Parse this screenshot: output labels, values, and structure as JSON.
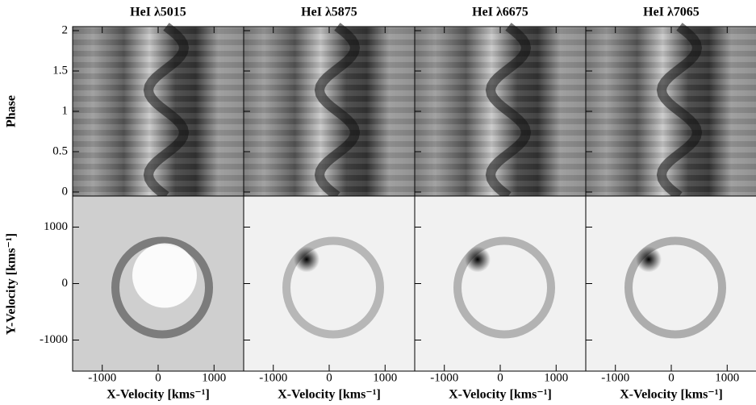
{
  "chart_data": {
    "type": "image-grid",
    "titles": [
      "HeI λ5015",
      "HeI λ5875",
      "HeI λ6675",
      "HeI λ7065"
    ],
    "trailed": {
      "ylabel": "Phase",
      "ylim": [
        -0.05,
        2.05
      ],
      "yticks": [
        0,
        0.5,
        1,
        1.5,
        2
      ]
    },
    "tomogram": {
      "xlabel": "X-Velocity [kms⁻¹]",
      "ylabel": "Y-Velocity [kms⁻¹]",
      "xlim": [
        -1530,
        1530
      ],
      "ylim": [
        -1550,
        1550
      ],
      "xticks": [
        -1000,
        0,
        1000
      ],
      "yticks": [
        -1000,
        0,
        1000
      ]
    }
  }
}
